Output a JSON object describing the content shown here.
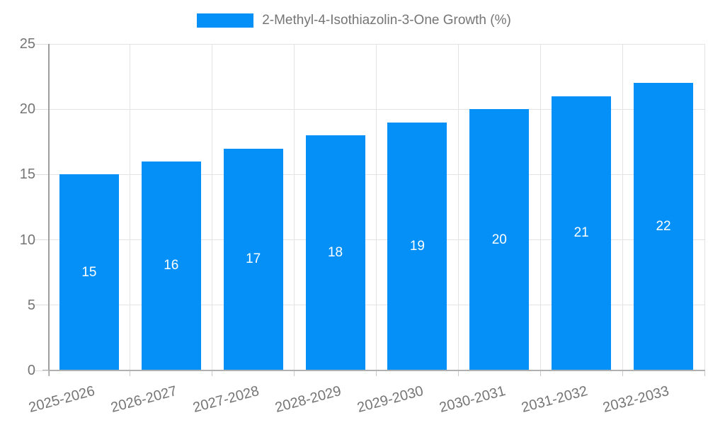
{
  "legend": {
    "label": "2-Methyl-4-Isothiazolin-3-One Growth (%)"
  },
  "colors": {
    "bar": "#0590F8",
    "axis_label": "#757575",
    "gridline": "#e3e3e3",
    "axis_line": "#9e9e9e",
    "value_label": "#ffffff"
  },
  "chart_data": {
    "type": "bar",
    "title": "2-Methyl-4-Isothiazolin-3-One Growth (%)",
    "categories": [
      "2025-2026",
      "2026-2027",
      "2027-2028",
      "2028-2029",
      "2029-2030",
      "2030-2031",
      "2031-2032",
      "2032-2033"
    ],
    "values": [
      15,
      16,
      17,
      18,
      19,
      20,
      21,
      22
    ],
    "xlabel": "",
    "ylabel": "",
    "ylim": [
      0,
      25
    ],
    "yticks": [
      0,
      5,
      10,
      15,
      20,
      25
    ],
    "grid": true,
    "legend_position": "top-center",
    "value_labels": "inside-center",
    "x_label_rotation_deg": -15
  }
}
